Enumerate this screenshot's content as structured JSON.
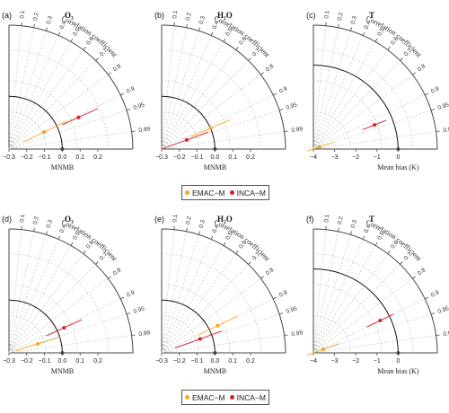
{
  "colors": {
    "emac": "#f5a623",
    "inca": "#d62027",
    "axis": "#444444",
    "grid": "#bbbbbb",
    "ref_arc": "#111111"
  },
  "legend": [
    {
      "label": "EMAC−M",
      "color": "#f5a623"
    },
    {
      "label": "INCA−M",
      "color": "#d62027"
    }
  ],
  "chart_data": [
    {
      "panel_label": "(a)",
      "title": "O₃",
      "xlabel": "MNMB",
      "arc_label": "Correlation coefficient",
      "type": "scatter",
      "x_ticks": [
        "−0.3",
        "−0.2",
        "−0.1",
        "0.0",
        "0.1",
        "0.2"
      ],
      "xlim": [
        -0.3,
        0.3
      ],
      "r_ticks": [
        "0.1",
        "0.2",
        "0.3",
        "0.4",
        "0.5",
        "0.6",
        "0.7",
        "0.8",
        "0.9",
        "0.95",
        "0.99"
      ],
      "series": [
        {
          "name": "EMAC−M",
          "bias": -0.08,
          "correlation": 0.9,
          "ci_low": -0.21,
          "ci_high": 0.06
        },
        {
          "name": "INCA−M",
          "bias": 0.13,
          "correlation": 0.91,
          "ci_low": 0.03,
          "ci_high": 0.25
        }
      ]
    },
    {
      "panel_label": "(b)",
      "title": "H₂O",
      "xlabel": "MNMB",
      "arc_label": "Correlation coefficient",
      "type": "scatter",
      "x_ticks": [
        "−0.3",
        "−0.2",
        "−0.1",
        "0.0",
        "0.1",
        "0.2"
      ],
      "xlim": [
        -0.3,
        0.3
      ],
      "r_ticks": [
        "0.1",
        "0.2",
        "0.3",
        "0.4",
        "0.5",
        "0.6",
        "0.7",
        "0.8",
        "0.9",
        "0.95",
        "0.99"
      ],
      "series": [
        {
          "name": "EMAC−M",
          "bias": 0.0,
          "correlation": 0.92,
          "ci_low": -0.12,
          "ci_high": 0.12
        },
        {
          "name": "INCA−M",
          "bias": -0.15,
          "correlation": 0.94,
          "ci_low": -0.3,
          "ci_high": -0.02
        }
      ]
    },
    {
      "panel_label": "(c)",
      "title": "T",
      "xlabel": "Mean bias (K)",
      "arc_label": "Correlation coefficient",
      "type": "scatter",
      "x_ticks": [
        "−4",
        "−3",
        "−2",
        "−1",
        "0"
      ],
      "xlim": [
        -4.5,
        1.3
      ],
      "r_ticks": [
        "0.1",
        "0.2",
        "0.3",
        "0.4",
        "0.5",
        "0.6",
        "0.7",
        "0.8",
        "0.9",
        "0.95",
        "0.99"
      ],
      "series": [
        {
          "name": "EMAC−M",
          "bias": -3.7,
          "correlation": 0.95,
          "ci_low": -4.3,
          "ci_high": -3.0
        },
        {
          "name": "INCA−M",
          "bias": -0.9,
          "correlation": 0.93,
          "ci_low": -1.5,
          "ci_high": -0.3
        }
      ]
    },
    {
      "panel_label": "(d)",
      "title": "O₃",
      "xlabel": "MNMB",
      "arc_label": "Correlation coefficient",
      "type": "scatter",
      "x_ticks": [
        "−0.3",
        "−0.2",
        "−0.1",
        "0.0",
        "0.1",
        "0.2"
      ],
      "xlim": [
        -0.3,
        0.3
      ],
      "r_ticks": [
        "0.1",
        "0.2",
        "0.3",
        "0.4",
        "0.5",
        "0.6",
        "0.7",
        "0.8",
        "0.9",
        "0.95",
        "0.99"
      ],
      "series": [
        {
          "name": "EMAC−M",
          "bias": -0.13,
          "correlation": 0.955,
          "ci_low": -0.26,
          "ci_high": 0.0
        },
        {
          "name": "INCA−M",
          "bias": 0.04,
          "correlation": 0.91,
          "ci_low": -0.07,
          "ci_high": 0.15
        }
      ]
    },
    {
      "panel_label": "(e)",
      "title": "H₂O",
      "xlabel": "MNMB",
      "arc_label": "Correlation coefficient",
      "type": "scatter",
      "x_ticks": [
        "−0.3",
        "−0.2",
        "−0.1",
        "0.0",
        "0.1",
        "0.2"
      ],
      "xlim": [
        -0.3,
        0.3
      ],
      "r_ticks": [
        "0.1",
        "0.2",
        "0.3",
        "0.4",
        "0.5",
        "0.6",
        "0.7",
        "0.8",
        "0.9",
        "0.95",
        "0.99"
      ],
      "series": [
        {
          "name": "EMAC−M",
          "bias": 0.05,
          "correlation": 0.9,
          "ci_low": -0.07,
          "ci_high": 0.17
        },
        {
          "name": "INCA−M",
          "bias": -0.07,
          "correlation": 0.94,
          "ci_low": -0.22,
          "ci_high": 0.06
        }
      ]
    },
    {
      "panel_label": "(f)",
      "title": "T",
      "xlabel": "Mean bias (K)",
      "arc_label": "Correlation coefficient",
      "type": "scatter",
      "x_ticks": [
        "−4",
        "−3",
        "−2",
        "−1",
        "0"
      ],
      "xlim": [
        -4.5,
        1.3
      ],
      "r_ticks": [
        "0.1",
        "0.2",
        "0.3",
        "0.4",
        "0.5",
        "0.6",
        "0.7",
        "0.8",
        "0.9",
        "0.95",
        "0.99"
      ],
      "series": [
        {
          "name": "EMAC−M",
          "bias": -3.5,
          "correlation": 0.94,
          "ci_low": -4.3,
          "ci_high": -2.7
        },
        {
          "name": "INCA−M",
          "bias": -0.5,
          "correlation": 0.9,
          "ci_low": -1.2,
          "ci_high": 0.2
        }
      ]
    }
  ]
}
